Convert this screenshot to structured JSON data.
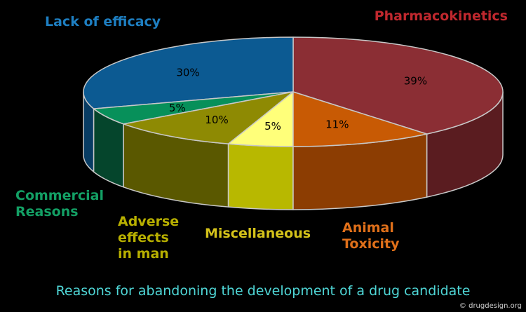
{
  "chart_data": {
    "type": "pie",
    "three_d": true,
    "title": "Reasons for abandoning the development of a drug candidate",
    "slices": [
      {
        "name": "Pharmacokinetics",
        "value": 39,
        "label": "39%",
        "color": "#8b2e34",
        "side_color": "#5a1c20",
        "label_color": "#c0282e"
      },
      {
        "name": "Lack of efficacy",
        "value": 30,
        "label": "30%",
        "color": "#0c5a92",
        "side_color": "#083c63",
        "label_color": "#1e7fc2"
      },
      {
        "name": "Commercial\nReasons",
        "value": 5,
        "label": "5%",
        "color": "#07905a",
        "side_color": "#05452c",
        "label_color": "#13a065"
      },
      {
        "name": "Adverse\neffects\nin man",
        "value": 10,
        "label": "10%",
        "color": "#8e8a03",
        "side_color": "#5a5800",
        "label_color": "#b8b000"
      },
      {
        "name": "Miscellaneous",
        "value": 5,
        "label": "5%",
        "color": "#ffff7a",
        "side_color": "#b8b800",
        "label_color": "#d4c21a"
      },
      {
        "name": "Animal\nToxicity",
        "value": 11,
        "label": "11%",
        "color": "#c85a04",
        "side_color": "#8c3d02",
        "label_color": "#e0701a"
      }
    ]
  },
  "caption_color": "#4fd6d6",
  "credit": "© drugdesign.org"
}
